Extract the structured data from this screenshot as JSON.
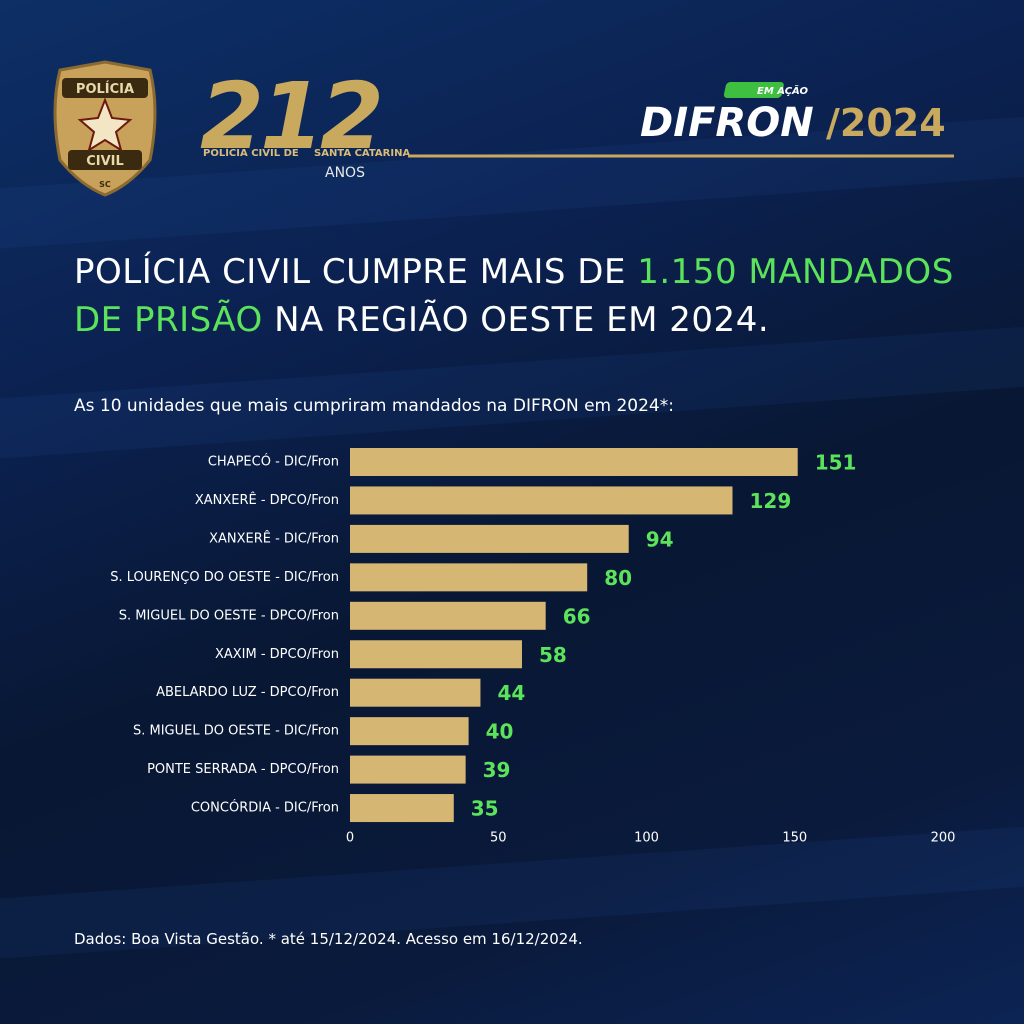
{
  "header": {
    "badge": {
      "top": "POLÍCIA",
      "bottom": "CIVIL",
      "state": "SC"
    },
    "anniversary": {
      "number": "212",
      "left": "POLÍCIA CIVIL DE",
      "right": "SANTA CATARINA",
      "years": "ANOS"
    },
    "program": {
      "tag": "EM AÇÃO",
      "name": "DIFRON",
      "year": "/2024"
    }
  },
  "headline": {
    "part1": "POLÍCIA CIVIL CUMPRE MAIS DE ",
    "highlight": "1.150 MANDADOS DE PRISÃO",
    "part2": " NA REGIÃO OESTE EM 2024."
  },
  "chart_data": {
    "type": "bar",
    "orientation": "horizontal",
    "title": "As 10 unidades que mais cumpriram mandados na DIFRON em 2024*:",
    "categories": [
      "CHAPECÓ - DIC/Fron",
      "XANXERÊ - DPCO/Fron",
      "XANXERÊ - DIC/Fron",
      "S. LOURENÇO DO OESTE - DIC/Fron",
      "S. MIGUEL DO OESTE - DPCO/Fron",
      "XAXIM - DPCO/Fron",
      "ABELARDO LUZ - DPCO/Fron",
      "S. MIGUEL DO OESTE - DIC/Fron",
      "PONTE SERRADA - DPCO/Fron",
      "CONCÓRDIA - DIC/Fron"
    ],
    "values": [
      151,
      129,
      94,
      80,
      66,
      58,
      44,
      40,
      39,
      35
    ],
    "color": "#d6b673",
    "value_label_color": "#5ce35c",
    "xlim": [
      0,
      200
    ],
    "xticks": [
      0,
      50,
      100,
      150,
      200
    ],
    "grid": false
  },
  "source": "Dados: Boa Vista Gestão. * até 15/12/2024. Acesso em 16/12/2024."
}
